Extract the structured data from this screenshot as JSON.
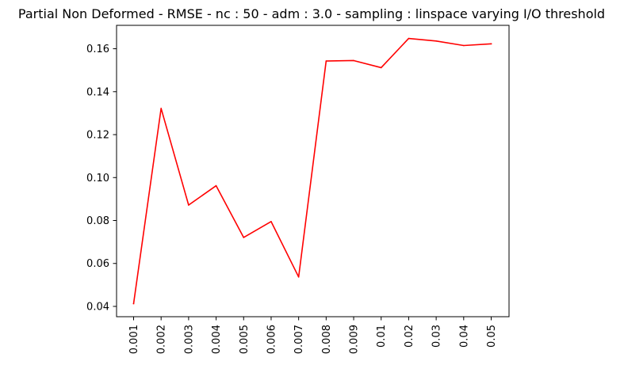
{
  "chart_data": {
    "type": "line",
    "title": "Partial Non Deformed - RMSE - nc : 50 - adm : 3.0 - sampling : linspace varying I/O threshold",
    "xlabel": "",
    "ylabel": "",
    "categories": [
      "0.001",
      "0.002",
      "0.003",
      "0.004",
      "0.005",
      "0.006",
      "0.007",
      "0.008",
      "0.009",
      "0.01",
      "0.02",
      "0.03",
      "0.04",
      "0.05"
    ],
    "series": [
      {
        "color": "#ff0000",
        "values": [
          0.0413,
          0.1322,
          0.0872,
          0.0962,
          0.0721,
          0.0795,
          0.0537,
          0.1543,
          0.1545,
          0.1512,
          0.1648,
          0.1636,
          0.1615,
          0.1623
        ]
      }
    ],
    "yticks": [
      0.04,
      0.06,
      0.08,
      0.1,
      0.12,
      0.14,
      0.16
    ],
    "ytick_labels": [
      "0.04",
      "0.06",
      "0.08",
      "0.10",
      "0.12",
      "0.14",
      "0.16"
    ],
    "ylim": [
      0.0352,
      0.1709
    ],
    "grid": false,
    "legend": "none",
    "xtick_rotation": "vertical"
  }
}
